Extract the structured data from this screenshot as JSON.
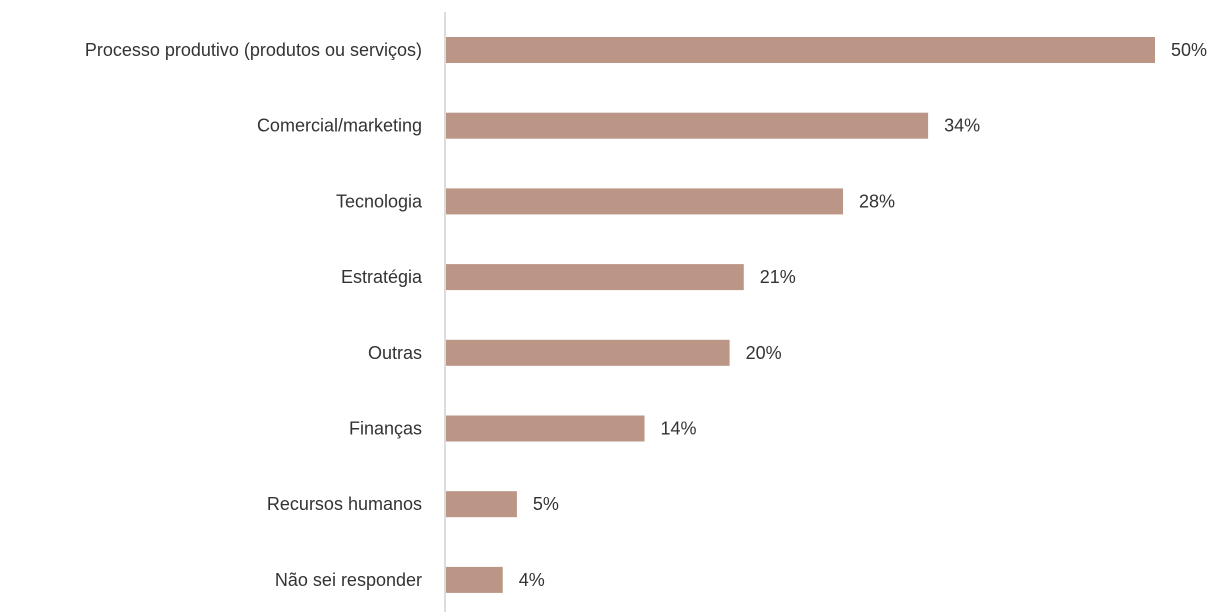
{
  "chart_data": {
    "type": "bar",
    "orientation": "horizontal",
    "categories": [
      "Processo produtivo (produtos ou serviços)",
      "Comercial/marketing",
      "Tecnologia",
      "Estratégia",
      "Outras",
      "Finanças",
      "Recursos humanos",
      "Não sei responder"
    ],
    "values": [
      50,
      34,
      28,
      21,
      20,
      14,
      5,
      4
    ],
    "value_labels": [
      "50%",
      "34%",
      "28%",
      "21%",
      "20%",
      "14%",
      "5%",
      "4%"
    ],
    "unit": "%",
    "xlim": [
      0,
      50
    ],
    "bar_color": "#bb9585",
    "axis_color": "#d0d0d0",
    "grid": false,
    "legend": "none"
  }
}
